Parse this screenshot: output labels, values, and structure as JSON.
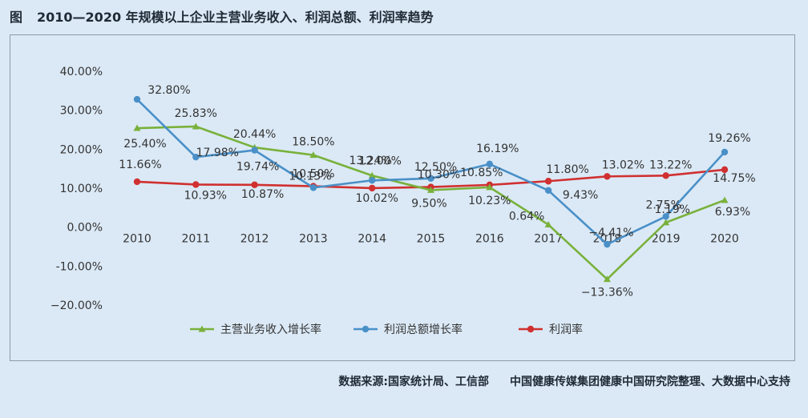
{
  "header": {
    "figure_label": "图",
    "title": "2010—2020 年规模以上企业主营业务收入、利润总额、利润率趋势"
  },
  "footer": {
    "source": "数据来源:国家统计局、工信部",
    "credit": "中国健康传媒集团健康中国研究院整理、大数据中心支持"
  },
  "chart_data": {
    "type": "line",
    "title": "",
    "xlabel": "",
    "ylabel": "",
    "categories": [
      "2010",
      "2011",
      "2012",
      "2013",
      "2014",
      "2015",
      "2016",
      "2017",
      "2018",
      "2019",
      "2020"
    ],
    "ylim": [
      -20,
      40
    ],
    "y_ticks": [
      40,
      30,
      20,
      10,
      0,
      -10,
      -20
    ],
    "y_tick_labels": [
      "40.00%",
      "30.00%",
      "20.00%",
      "10.00%",
      "0.00%",
      "-10.00%",
      "−20.00%"
    ],
    "grid": false,
    "legend_position": "bottom",
    "series": [
      {
        "name": "主营业务收入增长率",
        "color": "#79b13b",
        "marker": "triangle",
        "values": [
          25.4,
          25.83,
          20.44,
          18.5,
          13.24,
          9.5,
          10.23,
          0.64,
          -13.36,
          1.19,
          6.93
        ],
        "labels": [
          "25.40%",
          "25.83%",
          "20.44%",
          "18.50%",
          "13.24%",
          "9.50%",
          "10.23%",
          "0.64%",
          "−13.36%",
          "1.19%",
          "6.93%"
        ]
      },
      {
        "name": "利润总额增长率",
        "color": "#4a90c8",
        "marker": "circle",
        "values": [
          32.8,
          17.98,
          19.74,
          10.13,
          12.0,
          12.5,
          16.19,
          9.43,
          -4.41,
          2.75,
          19.26
        ],
        "labels": [
          "32.80%",
          "17.98%",
          "19.74%",
          "10.13%",
          "12.00%",
          "12.50%",
          "16.19%",
          "9.43%",
          "−4.41%",
          "2.75%",
          "19.26%"
        ]
      },
      {
        "name": "利润率",
        "color": "#d03030",
        "marker": "circle",
        "values": [
          11.66,
          10.93,
          10.87,
          10.5,
          10.02,
          10.3,
          10.85,
          11.8,
          13.02,
          13.22,
          14.75
        ],
        "labels": [
          "11.66%",
          "10.93%",
          "10.87%",
          "10.50%",
          "10.02%",
          "10.30%",
          "10.85%",
          "11.80%",
          "13.02%",
          "13.22%",
          "14.75%"
        ]
      }
    ]
  }
}
